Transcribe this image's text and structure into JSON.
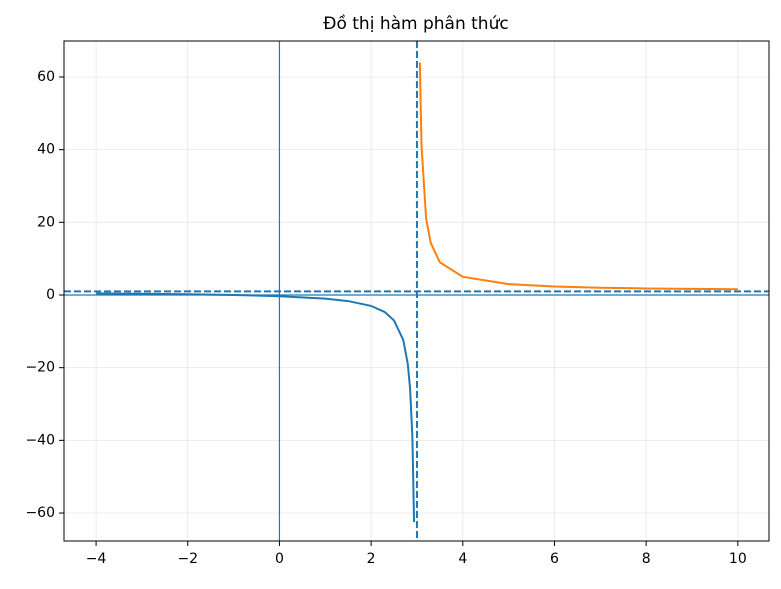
{
  "chart_data": {
    "type": "line",
    "title": "Đồ thị hàm phân thức",
    "series": [
      {
        "color": "#1f77b4",
        "x": [
          -4,
          -3,
          -2,
          -1,
          0,
          1,
          1.5,
          2,
          2.3,
          2.5,
          2.7,
          2.8,
          2.85,
          2.9,
          2.937
        ],
        "values": [
          0.43,
          0.33,
          0.2,
          0,
          -0.33,
          -1,
          -1.67,
          -3,
          -4.71,
          -7,
          -12.33,
          -19,
          -25.67,
          -39,
          -62.5
        ]
      },
      {
        "color": "#ff7f0e",
        "x": [
          3.063,
          3.1,
          3.2,
          3.3,
          3.5,
          4,
          5,
          6,
          7,
          8,
          9,
          10
        ],
        "values": [
          64,
          41,
          21,
          14.33,
          9,
          5,
          3,
          2.33,
          2,
          1.8,
          1.67,
          1.57
        ]
      }
    ],
    "reference_lines": [
      {
        "axis": "x",
        "value": 0,
        "style": "solid",
        "color": "#1f77b4"
      },
      {
        "axis": "y",
        "value": 0,
        "style": "solid",
        "color": "#1f77b4"
      },
      {
        "axis": "x",
        "value": 3,
        "style": "dashed",
        "color": "#1f77b4"
      },
      {
        "axis": "y",
        "value": 1,
        "style": "dashed",
        "color": "#1f77b4"
      }
    ],
    "xlim": [
      -4.7,
      10.68
    ],
    "ylim": [
      -67.7,
      69.9
    ],
    "xticks": [
      {
        "value": -4,
        "label": "−4"
      },
      {
        "value": -2,
        "label": "−2"
      },
      0,
      2,
      4,
      6,
      8,
      10
    ],
    "yticks": [
      {
        "value": -60,
        "label": "−60"
      },
      {
        "value": -40,
        "label": "−40"
      },
      {
        "value": -20,
        "label": "−20"
      },
      0,
      20,
      40,
      60
    ],
    "grid": true
  }
}
